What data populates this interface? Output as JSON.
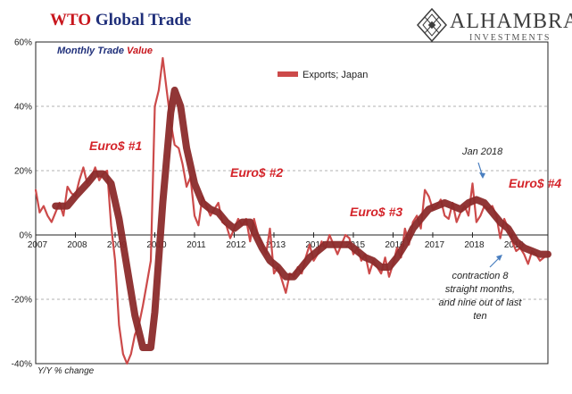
{
  "header": {
    "title_part1": "WTO",
    "title_part2": "Global Trade",
    "subtitle_part1": "Monthly Trade",
    "subtitle_part2": "Value",
    "y_axis_caption": "Y/Y % change"
  },
  "brand": {
    "name": "ALHAMBRA",
    "sub": "INVESTMENTS",
    "logo_icon": "diamond-lattice-icon"
  },
  "colors": {
    "raw_series": "#cc4a4a",
    "smoothed_series": "#8b2b2b",
    "title_red": "#c8161d",
    "title_blue": "#1f2f7a",
    "annotation_red": "#d4242a",
    "arrow_blue": "#4a7fc0"
  },
  "annotations": {
    "euro1": "Euro$ #1",
    "euro2": "Euro$ #2",
    "euro3": "Euro$ #3",
    "euro4": "Euro$ #4",
    "jan2018": "Jan 2018",
    "contraction": [
      "contraction 8",
      "straight months,",
      "and nine out of last",
      "ten"
    ]
  },
  "chart_data": {
    "type": "line",
    "xlim": [
      2007.0,
      2019.9
    ],
    "ylim": [
      -40,
      60
    ],
    "x_ticks": [
      "2007",
      "2008",
      "2009",
      "2010",
      "2011",
      "2012",
      "2013",
      "2014",
      "2015",
      "2016",
      "2017",
      "2018",
      "2019"
    ],
    "y_ticks": [
      {
        "value": 60,
        "label": "60%"
      },
      {
        "value": 40,
        "label": "40%"
      },
      {
        "value": 20,
        "label": "20%"
      },
      {
        "value": 0,
        "label": "0%"
      },
      {
        "value": -20,
        "label": "-20%"
      },
      {
        "value": -40,
        "label": "-40%"
      }
    ],
    "grid": "horizontal dashed",
    "legend": {
      "placement": "top-center",
      "entries": [
        "Exports; Japan"
      ]
    },
    "series": [
      {
        "name": "Exports; Japan",
        "style": "monthly",
        "points": [
          [
            2007.0,
            14
          ],
          [
            2007.1,
            7
          ],
          [
            2007.2,
            9
          ],
          [
            2007.3,
            6
          ],
          [
            2007.4,
            4
          ],
          [
            2007.5,
            7
          ],
          [
            2007.6,
            10
          ],
          [
            2007.7,
            6
          ],
          [
            2007.8,
            15
          ],
          [
            2007.9,
            13
          ],
          [
            2008.0,
            12
          ],
          [
            2008.1,
            17
          ],
          [
            2008.2,
            21
          ],
          [
            2008.3,
            16
          ],
          [
            2008.4,
            18
          ],
          [
            2008.5,
            21
          ],
          [
            2008.6,
            17
          ],
          [
            2008.7,
            19
          ],
          [
            2008.8,
            20
          ],
          [
            2008.9,
            3
          ],
          [
            2009.0,
            -8
          ],
          [
            2009.1,
            -28
          ],
          [
            2009.2,
            -37
          ],
          [
            2009.3,
            -40
          ],
          [
            2009.4,
            -37
          ],
          [
            2009.5,
            -31
          ],
          [
            2009.6,
            -28
          ],
          [
            2009.7,
            -22
          ],
          [
            2009.8,
            -15
          ],
          [
            2009.9,
            -8
          ],
          [
            2010.0,
            40
          ],
          [
            2010.1,
            45
          ],
          [
            2010.2,
            55
          ],
          [
            2010.3,
            45
          ],
          [
            2010.4,
            35
          ],
          [
            2010.5,
            28
          ],
          [
            2010.6,
            27
          ],
          [
            2010.7,
            22
          ],
          [
            2010.8,
            15
          ],
          [
            2010.9,
            18
          ],
          [
            2011.0,
            6
          ],
          [
            2011.1,
            3
          ],
          [
            2011.2,
            12
          ],
          [
            2011.3,
            9
          ],
          [
            2011.4,
            6
          ],
          [
            2011.5,
            8
          ],
          [
            2011.6,
            10
          ],
          [
            2011.7,
            4
          ],
          [
            2011.8,
            3
          ],
          [
            2011.9,
            -1
          ],
          [
            2012.0,
            2
          ],
          [
            2012.1,
            5
          ],
          [
            2012.2,
            3
          ],
          [
            2012.3,
            5
          ],
          [
            2012.4,
            -2
          ],
          [
            2012.5,
            5
          ],
          [
            2012.6,
            0
          ],
          [
            2012.7,
            -3
          ],
          [
            2012.8,
            -6
          ],
          [
            2012.9,
            2
          ],
          [
            2013.0,
            -12
          ],
          [
            2013.1,
            -10
          ],
          [
            2013.2,
            -14
          ],
          [
            2013.3,
            -18
          ],
          [
            2013.4,
            -12
          ],
          [
            2013.5,
            -13
          ],
          [
            2013.6,
            -10
          ],
          [
            2013.7,
            -12
          ],
          [
            2013.8,
            -7
          ],
          [
            2013.9,
            -3
          ],
          [
            2014.0,
            -8
          ],
          [
            2014.1,
            -6
          ],
          [
            2014.2,
            -2
          ],
          [
            2014.3,
            -4
          ],
          [
            2014.4,
            0
          ],
          [
            2014.5,
            -3
          ],
          [
            2014.6,
            -6
          ],
          [
            2014.7,
            -3
          ],
          [
            2014.8,
            0
          ],
          [
            2014.9,
            -1
          ],
          [
            2015.0,
            -6
          ],
          [
            2015.1,
            -4
          ],
          [
            2015.2,
            -8
          ],
          [
            2015.3,
            -6
          ],
          [
            2015.4,
            -12
          ],
          [
            2015.5,
            -8
          ],
          [
            2015.6,
            -10
          ],
          [
            2015.7,
            -12
          ],
          [
            2015.8,
            -7
          ],
          [
            2015.9,
            -13
          ],
          [
            2016.0,
            -9
          ],
          [
            2016.1,
            -4
          ],
          [
            2016.2,
            -7
          ],
          [
            2016.3,
            2
          ],
          [
            2016.4,
            -3
          ],
          [
            2016.5,
            4
          ],
          [
            2016.6,
            6
          ],
          [
            2016.7,
            2
          ],
          [
            2016.8,
            14
          ],
          [
            2016.9,
            12
          ],
          [
            2017.0,
            8
          ],
          [
            2017.1,
            9
          ],
          [
            2017.2,
            11
          ],
          [
            2017.3,
            6
          ],
          [
            2017.4,
            5
          ],
          [
            2017.5,
            10
          ],
          [
            2017.6,
            4
          ],
          [
            2017.7,
            7
          ],
          [
            2017.8,
            9
          ],
          [
            2017.9,
            6
          ],
          [
            2018.0,
            16
          ],
          [
            2018.1,
            4
          ],
          [
            2018.2,
            6
          ],
          [
            2018.3,
            9
          ],
          [
            2018.4,
            8
          ],
          [
            2018.5,
            9
          ],
          [
            2018.6,
            6
          ],
          [
            2018.7,
            -1
          ],
          [
            2018.8,
            5
          ],
          [
            2018.9,
            2
          ],
          [
            2019.0,
            -2
          ],
          [
            2019.1,
            -5
          ],
          [
            2019.2,
            -4
          ],
          [
            2019.3,
            -6
          ],
          [
            2019.4,
            -9
          ],
          [
            2019.5,
            -5
          ],
          [
            2019.6,
            -6
          ],
          [
            2019.7,
            -8
          ],
          [
            2019.8,
            -7
          ]
        ]
      },
      {
        "name": "",
        "style": "smoothed",
        "points": [
          [
            2007.5,
            9
          ],
          [
            2007.8,
            9
          ],
          [
            2008.0,
            12
          ],
          [
            2008.3,
            16
          ],
          [
            2008.5,
            19
          ],
          [
            2008.7,
            19
          ],
          [
            2008.9,
            16
          ],
          [
            2009.1,
            5
          ],
          [
            2009.3,
            -10
          ],
          [
            2009.5,
            -25
          ],
          [
            2009.7,
            -35
          ],
          [
            2009.9,
            -35
          ],
          [
            2010.0,
            -24
          ],
          [
            2010.2,
            10
          ],
          [
            2010.4,
            38
          ],
          [
            2010.5,
            45
          ],
          [
            2010.65,
            40
          ],
          [
            2010.8,
            27
          ],
          [
            2011.0,
            16
          ],
          [
            2011.2,
            10
          ],
          [
            2011.4,
            8
          ],
          [
            2011.6,
            7
          ],
          [
            2011.8,
            4
          ],
          [
            2012.0,
            2
          ],
          [
            2012.2,
            4
          ],
          [
            2012.4,
            4
          ],
          [
            2012.5,
            1
          ],
          [
            2012.7,
            -4
          ],
          [
            2012.9,
            -8
          ],
          [
            2013.1,
            -10
          ],
          [
            2013.3,
            -13
          ],
          [
            2013.5,
            -13
          ],
          [
            2013.7,
            -10
          ],
          [
            2013.9,
            -7
          ],
          [
            2014.1,
            -5
          ],
          [
            2014.3,
            -3
          ],
          [
            2014.5,
            -3
          ],
          [
            2014.7,
            -3
          ],
          [
            2014.9,
            -3
          ],
          [
            2015.1,
            -5
          ],
          [
            2015.3,
            -7
          ],
          [
            2015.5,
            -8
          ],
          [
            2015.7,
            -10
          ],
          [
            2015.9,
            -10
          ],
          [
            2016.1,
            -7
          ],
          [
            2016.3,
            -3
          ],
          [
            2016.5,
            2
          ],
          [
            2016.7,
            5
          ],
          [
            2016.9,
            8
          ],
          [
            2017.1,
            9
          ],
          [
            2017.3,
            10
          ],
          [
            2017.5,
            9
          ],
          [
            2017.7,
            8
          ],
          [
            2017.9,
            10
          ],
          [
            2018.1,
            11
          ],
          [
            2018.3,
            10
          ],
          [
            2018.5,
            7
          ],
          [
            2018.7,
            4
          ],
          [
            2018.9,
            2
          ],
          [
            2019.1,
            -2
          ],
          [
            2019.3,
            -4
          ],
          [
            2019.5,
            -5
          ],
          [
            2019.7,
            -6
          ],
          [
            2019.9,
            -6
          ]
        ]
      }
    ]
  }
}
